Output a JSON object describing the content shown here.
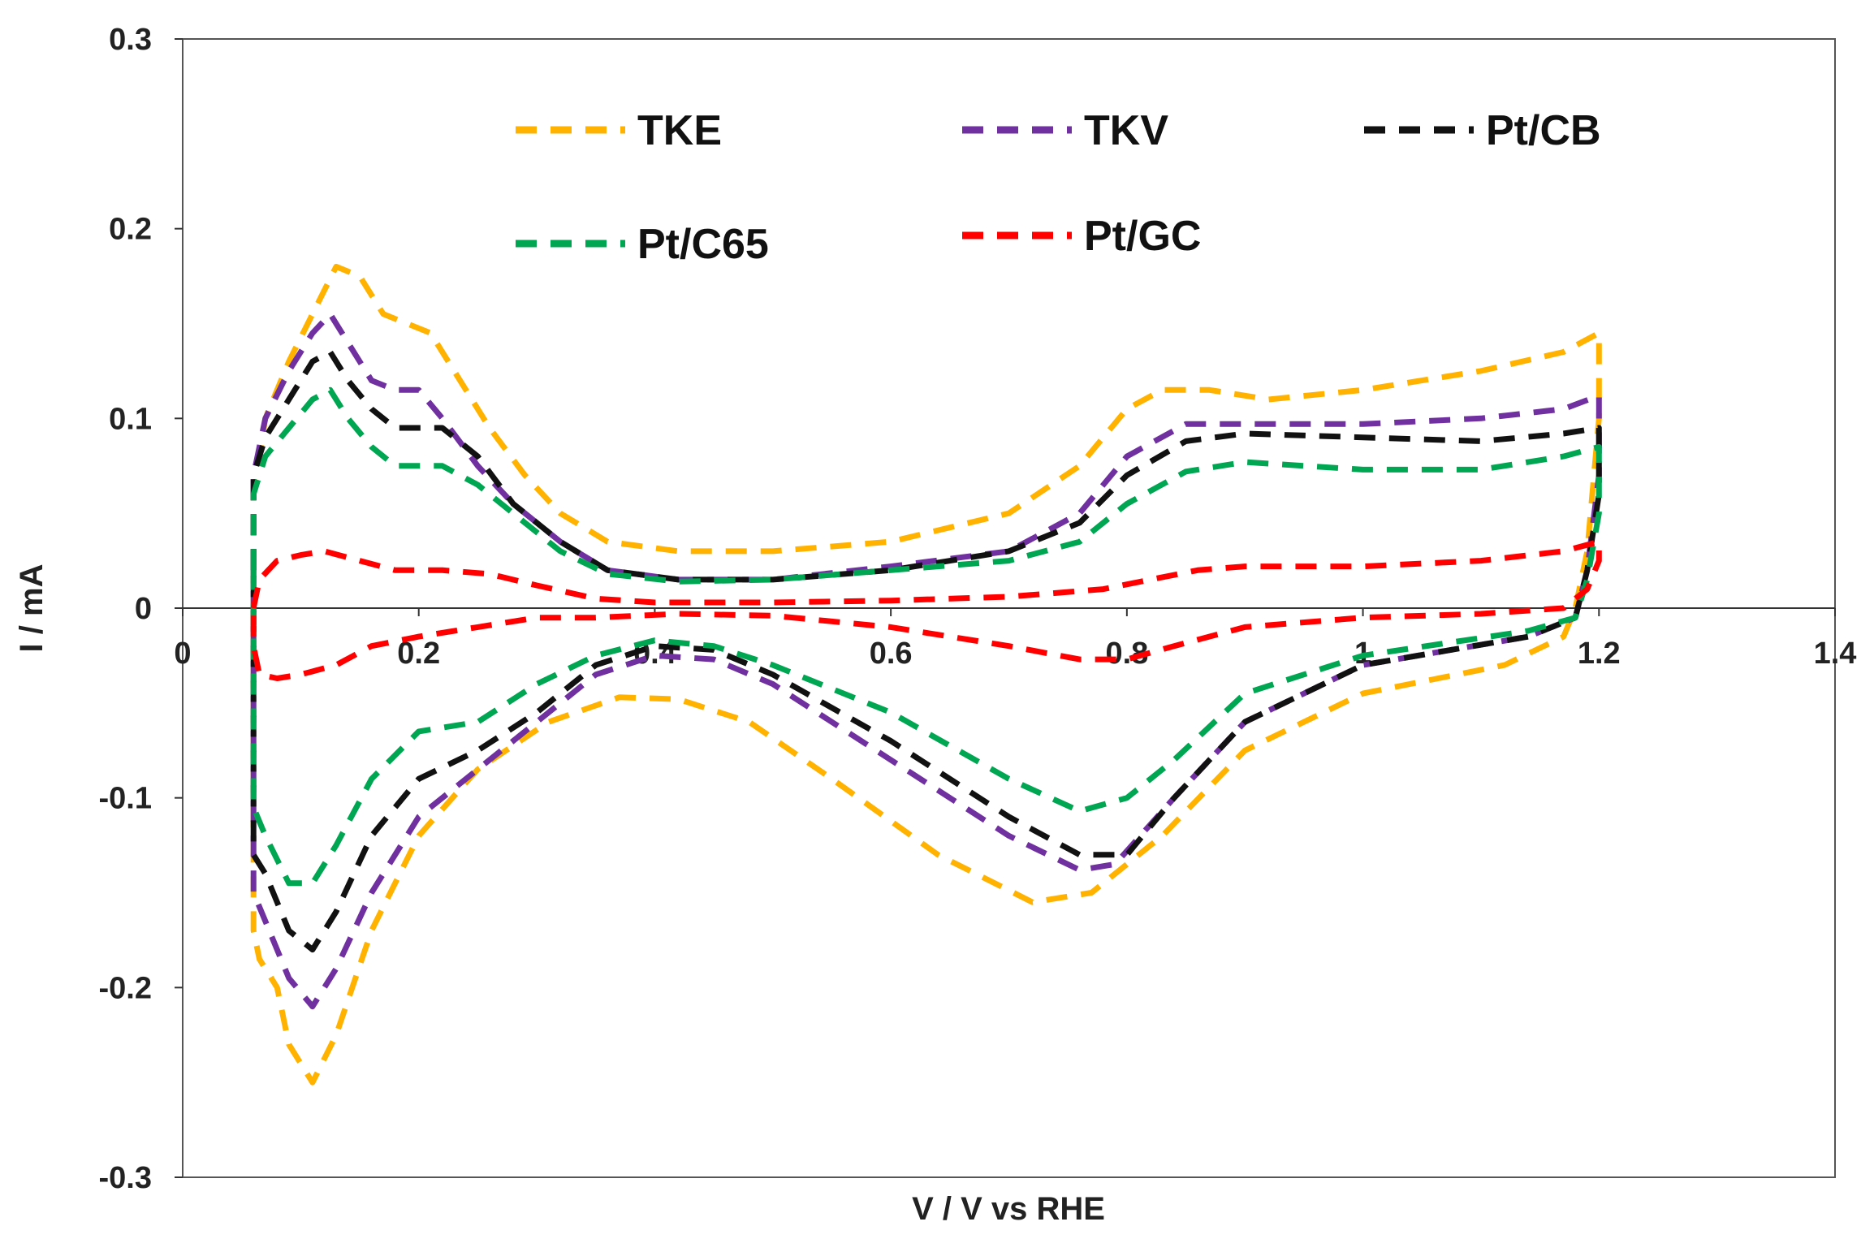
{
  "chart_data": {
    "type": "line",
    "title": "",
    "xlabel": "V / V  vs RHE",
    "ylabel": "I / mA",
    "xlim": [
      0,
      1.4
    ],
    "ylim": [
      -0.3,
      0.3
    ],
    "x_ticks": [
      "0",
      "0.2",
      "0.4",
      "0.6",
      "0.8",
      "1",
      "1.2",
      "1.4"
    ],
    "y_ticks": [
      "0.3",
      "0.2",
      "0.1",
      "0",
      "-0.1",
      "-0.2",
      "-0.3"
    ],
    "x_tick_values": [
      0,
      0.2,
      0.4,
      0.6,
      0.8,
      1.0,
      1.2,
      1.4
    ],
    "y_tick_values": [
      0.3,
      0.2,
      0.1,
      0,
      -0.1,
      -0.2,
      -0.3
    ],
    "grid": false,
    "legend_position": "top",
    "series": [
      {
        "name": "TKE",
        "color": "#FFB300",
        "points": [
          [
            0.06,
            0.02
          ],
          [
            0.06,
            0.06
          ],
          [
            0.07,
            0.1
          ],
          [
            0.09,
            0.13
          ],
          [
            0.11,
            0.155
          ],
          [
            0.13,
            0.18
          ],
          [
            0.15,
            0.175
          ],
          [
            0.17,
            0.155
          ],
          [
            0.19,
            0.15
          ],
          [
            0.21,
            0.145
          ],
          [
            0.23,
            0.125
          ],
          [
            0.26,
            0.095
          ],
          [
            0.29,
            0.07
          ],
          [
            0.32,
            0.05
          ],
          [
            0.36,
            0.035
          ],
          [
            0.42,
            0.03
          ],
          [
            0.5,
            0.03
          ],
          [
            0.6,
            0.035
          ],
          [
            0.7,
            0.05
          ],
          [
            0.76,
            0.075
          ],
          [
            0.8,
            0.105
          ],
          [
            0.83,
            0.115
          ],
          [
            0.87,
            0.115
          ],
          [
            0.92,
            0.11
          ],
          [
            1.0,
            0.115
          ],
          [
            1.1,
            0.125
          ],
          [
            1.17,
            0.135
          ],
          [
            1.2,
            0.145
          ],
          [
            1.2,
            0.1
          ],
          [
            1.19,
            0.03
          ],
          [
            1.18,
            0.0
          ],
          [
            1.17,
            -0.015
          ],
          [
            1.12,
            -0.03
          ],
          [
            1.0,
            -0.045
          ],
          [
            0.9,
            -0.075
          ],
          [
            0.83,
            -0.12
          ],
          [
            0.77,
            -0.15
          ],
          [
            0.72,
            -0.155
          ],
          [
            0.64,
            -0.13
          ],
          [
            0.55,
            -0.09
          ],
          [
            0.48,
            -0.06
          ],
          [
            0.42,
            -0.048
          ],
          [
            0.37,
            -0.047
          ],
          [
            0.31,
            -0.06
          ],
          [
            0.25,
            -0.085
          ],
          [
            0.2,
            -0.12
          ],
          [
            0.16,
            -0.17
          ],
          [
            0.13,
            -0.225
          ],
          [
            0.11,
            -0.25
          ],
          [
            0.09,
            -0.23
          ],
          [
            0.08,
            -0.2
          ],
          [
            0.065,
            -0.185
          ],
          [
            0.06,
            -0.17
          ],
          [
            0.06,
            -0.12
          ],
          [
            0.06,
            0.02
          ]
        ]
      },
      {
        "name": "TKV",
        "color": "#7030A0",
        "points": [
          [
            0.06,
            0.02
          ],
          [
            0.06,
            0.07
          ],
          [
            0.07,
            0.1
          ],
          [
            0.09,
            0.125
          ],
          [
            0.11,
            0.145
          ],
          [
            0.125,
            0.155
          ],
          [
            0.14,
            0.14
          ],
          [
            0.16,
            0.12
          ],
          [
            0.18,
            0.115
          ],
          [
            0.2,
            0.115
          ],
          [
            0.22,
            0.1
          ],
          [
            0.25,
            0.075
          ],
          [
            0.28,
            0.055
          ],
          [
            0.32,
            0.035
          ],
          [
            0.36,
            0.02
          ],
          [
            0.42,
            0.015
          ],
          [
            0.5,
            0.015
          ],
          [
            0.6,
            0.022
          ],
          [
            0.7,
            0.03
          ],
          [
            0.76,
            0.05
          ],
          [
            0.8,
            0.08
          ],
          [
            0.85,
            0.097
          ],
          [
            0.9,
            0.097
          ],
          [
            1.0,
            0.097
          ],
          [
            1.1,
            0.1
          ],
          [
            1.17,
            0.105
          ],
          [
            1.2,
            0.112
          ],
          [
            1.2,
            0.07
          ],
          [
            1.19,
            0.02
          ],
          [
            1.18,
            -0.005
          ],
          [
            1.14,
            -0.015
          ],
          [
            1.0,
            -0.03
          ],
          [
            0.9,
            -0.06
          ],
          [
            0.84,
            -0.1
          ],
          [
            0.79,
            -0.135
          ],
          [
            0.76,
            -0.138
          ],
          [
            0.7,
            -0.12
          ],
          [
            0.6,
            -0.08
          ],
          [
            0.5,
            -0.04
          ],
          [
            0.45,
            -0.027
          ],
          [
            0.4,
            -0.025
          ],
          [
            0.35,
            -0.035
          ],
          [
            0.3,
            -0.06
          ],
          [
            0.25,
            -0.085
          ],
          [
            0.2,
            -0.11
          ],
          [
            0.16,
            -0.15
          ],
          [
            0.13,
            -0.19
          ],
          [
            0.11,
            -0.21
          ],
          [
            0.09,
            -0.195
          ],
          [
            0.07,
            -0.165
          ],
          [
            0.06,
            -0.15
          ],
          [
            0.06,
            -0.1
          ],
          [
            0.06,
            0.02
          ]
        ]
      },
      {
        "name": "Pt/CB",
        "color": "#111111",
        "points": [
          [
            0.06,
            0.02
          ],
          [
            0.06,
            0.07
          ],
          [
            0.07,
            0.09
          ],
          [
            0.09,
            0.11
          ],
          [
            0.11,
            0.13
          ],
          [
            0.125,
            0.135
          ],
          [
            0.14,
            0.12
          ],
          [
            0.16,
            0.105
          ],
          [
            0.18,
            0.095
          ],
          [
            0.2,
            0.095
          ],
          [
            0.22,
            0.095
          ],
          [
            0.25,
            0.08
          ],
          [
            0.28,
            0.055
          ],
          [
            0.32,
            0.035
          ],
          [
            0.36,
            0.02
          ],
          [
            0.42,
            0.015
          ],
          [
            0.5,
            0.015
          ],
          [
            0.6,
            0.02
          ],
          [
            0.7,
            0.03
          ],
          [
            0.76,
            0.045
          ],
          [
            0.8,
            0.07
          ],
          [
            0.85,
            0.088
          ],
          [
            0.9,
            0.092
          ],
          [
            1.0,
            0.09
          ],
          [
            1.1,
            0.088
          ],
          [
            1.17,
            0.092
          ],
          [
            1.2,
            0.095
          ],
          [
            1.2,
            0.06
          ],
          [
            1.19,
            0.02
          ],
          [
            1.18,
            -0.005
          ],
          [
            1.14,
            -0.015
          ],
          [
            1.0,
            -0.03
          ],
          [
            0.9,
            -0.06
          ],
          [
            0.84,
            -0.1
          ],
          [
            0.8,
            -0.13
          ],
          [
            0.76,
            -0.13
          ],
          [
            0.7,
            -0.11
          ],
          [
            0.6,
            -0.07
          ],
          [
            0.5,
            -0.035
          ],
          [
            0.45,
            -0.022
          ],
          [
            0.4,
            -0.02
          ],
          [
            0.35,
            -0.03
          ],
          [
            0.3,
            -0.055
          ],
          [
            0.25,
            -0.075
          ],
          [
            0.2,
            -0.09
          ],
          [
            0.16,
            -0.12
          ],
          [
            0.13,
            -0.16
          ],
          [
            0.11,
            -0.18
          ],
          [
            0.09,
            -0.17
          ],
          [
            0.07,
            -0.14
          ],
          [
            0.06,
            -0.13
          ],
          [
            0.06,
            -0.08
          ],
          [
            0.06,
            0.02
          ]
        ]
      },
      {
        "name": "Pt/C65",
        "color": "#00A651",
        "points": [
          [
            0.06,
            0.02
          ],
          [
            0.06,
            0.06
          ],
          [
            0.07,
            0.08
          ],
          [
            0.09,
            0.095
          ],
          [
            0.11,
            0.11
          ],
          [
            0.125,
            0.115
          ],
          [
            0.14,
            0.1
          ],
          [
            0.16,
            0.085
          ],
          [
            0.18,
            0.075
          ],
          [
            0.2,
            0.075
          ],
          [
            0.22,
            0.075
          ],
          [
            0.25,
            0.065
          ],
          [
            0.28,
            0.05
          ],
          [
            0.32,
            0.03
          ],
          [
            0.36,
            0.018
          ],
          [
            0.42,
            0.014
          ],
          [
            0.5,
            0.015
          ],
          [
            0.6,
            0.02
          ],
          [
            0.7,
            0.025
          ],
          [
            0.76,
            0.035
          ],
          [
            0.8,
            0.055
          ],
          [
            0.85,
            0.072
          ],
          [
            0.9,
            0.077
          ],
          [
            1.0,
            0.073
          ],
          [
            1.1,
            0.073
          ],
          [
            1.17,
            0.08
          ],
          [
            1.2,
            0.085
          ],
          [
            1.2,
            0.05
          ],
          [
            1.19,
            0.015
          ],
          [
            1.18,
            -0.005
          ],
          [
            1.14,
            -0.012
          ],
          [
            1.0,
            -0.025
          ],
          [
            0.9,
            -0.045
          ],
          [
            0.84,
            -0.08
          ],
          [
            0.8,
            -0.1
          ],
          [
            0.76,
            -0.107
          ],
          [
            0.7,
            -0.09
          ],
          [
            0.6,
            -0.055
          ],
          [
            0.5,
            -0.03
          ],
          [
            0.45,
            -0.02
          ],
          [
            0.4,
            -0.017
          ],
          [
            0.35,
            -0.025
          ],
          [
            0.3,
            -0.04
          ],
          [
            0.25,
            -0.06
          ],
          [
            0.2,
            -0.065
          ],
          [
            0.16,
            -0.09
          ],
          [
            0.13,
            -0.125
          ],
          [
            0.11,
            -0.145
          ],
          [
            0.09,
            -0.145
          ],
          [
            0.07,
            -0.12
          ],
          [
            0.06,
            -0.105
          ],
          [
            0.06,
            -0.06
          ],
          [
            0.06,
            0.02
          ]
        ]
      },
      {
        "name": "Pt/GC",
        "color": "#FF0000",
        "points": [
          [
            0.06,
            0.0
          ],
          [
            0.065,
            0.015
          ],
          [
            0.08,
            0.025
          ],
          [
            0.1,
            0.028
          ],
          [
            0.12,
            0.03
          ],
          [
            0.15,
            0.025
          ],
          [
            0.18,
            0.02
          ],
          [
            0.22,
            0.02
          ],
          [
            0.26,
            0.018
          ],
          [
            0.3,
            0.012
          ],
          [
            0.35,
            0.005
          ],
          [
            0.4,
            0.003
          ],
          [
            0.5,
            0.003
          ],
          [
            0.6,
            0.004
          ],
          [
            0.7,
            0.006
          ],
          [
            0.78,
            0.01
          ],
          [
            0.82,
            0.015
          ],
          [
            0.86,
            0.02
          ],
          [
            0.9,
            0.022
          ],
          [
            1.0,
            0.022
          ],
          [
            1.1,
            0.025
          ],
          [
            1.17,
            0.03
          ],
          [
            1.2,
            0.035
          ],
          [
            1.2,
            0.025
          ],
          [
            1.19,
            0.01
          ],
          [
            1.17,
            0.0
          ],
          [
            1.1,
            -0.003
          ],
          [
            1.0,
            -0.005
          ],
          [
            0.9,
            -0.01
          ],
          [
            0.84,
            -0.02
          ],
          [
            0.8,
            -0.027
          ],
          [
            0.76,
            -0.027
          ],
          [
            0.7,
            -0.02
          ],
          [
            0.6,
            -0.01
          ],
          [
            0.5,
            -0.004
          ],
          [
            0.42,
            -0.003
          ],
          [
            0.35,
            -0.005
          ],
          [
            0.3,
            -0.005
          ],
          [
            0.25,
            -0.01
          ],
          [
            0.2,
            -0.015
          ],
          [
            0.16,
            -0.02
          ],
          [
            0.13,
            -0.03
          ],
          [
            0.1,
            -0.035
          ],
          [
            0.08,
            -0.037
          ],
          [
            0.065,
            -0.035
          ],
          [
            0.06,
            -0.02
          ],
          [
            0.06,
            0.0
          ]
        ]
      }
    ]
  }
}
